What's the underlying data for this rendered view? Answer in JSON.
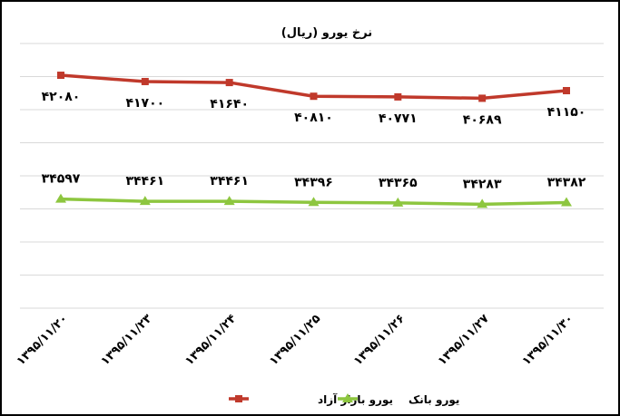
{
  "chart_data": {
    "type": "line",
    "title": "نرخ یورو (ریال)",
    "categories": [
      "۱۳۹۵/۱۱/۲۰",
      "۱۳۹۵/۱۱/۲۳",
      "۱۳۹۵/۱۱/۲۴",
      "۱۳۹۵/۱۱/۲۵",
      "۱۳۹۵/۱۱/۲۶",
      "۱۳۹۵/۱۱/۲۷",
      "۱۳۹۵/۱۱/۳۰"
    ],
    "series": [
      {
        "name": "یورو بازار آزاد",
        "color": "#c0392b",
        "marker": "square",
        "values": [
          42080,
          41700,
          41640,
          40810,
          40771,
          40689,
          41150
        ],
        "labels": [
          "۴۲۰۸۰",
          "۴۱۷۰۰",
          "۴۱۶۴۰",
          "۴۰۸۱۰",
          "۴۰۷۷۱",
          "۴۰۶۸۹",
          "۴۱۱۵۰"
        ]
      },
      {
        "name": "یورو بانک",
        "color": "#8dc63f",
        "marker": "triangle",
        "values": [
          34597,
          34461,
          34461,
          34396,
          34365,
          34283,
          34382
        ],
        "labels": [
          "۳۴۵۹۷",
          "۳۴۴۶۱",
          "۳۴۴۶۱",
          "۳۴۳۹۶",
          "۳۴۳۶۵",
          "۳۴۲۸۳",
          "۳۴۳۸۲"
        ]
      }
    ],
    "ylim": [
      28000,
      44000
    ],
    "y_axis_labels_shown": false,
    "grid": "horizontal",
    "legend_position": "bottom"
  }
}
